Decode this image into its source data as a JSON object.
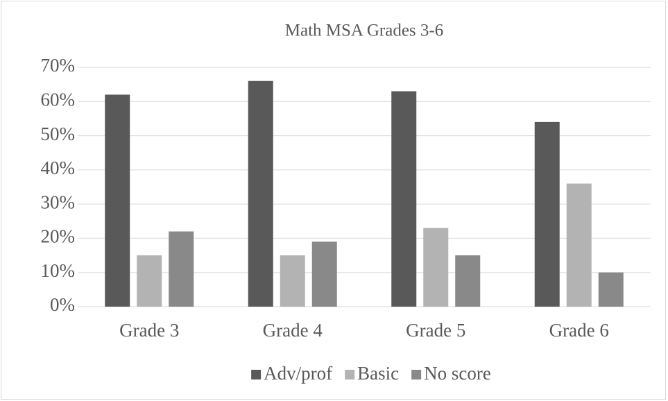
{
  "chart_data": {
    "type": "bar",
    "title": "Math MSA Grades 3-6",
    "categories": [
      "Grade 3",
      "Grade 4",
      "Grade 5",
      "Grade 6"
    ],
    "series": [
      {
        "name": "Adv/prof",
        "color": "#595959",
        "values": [
          62,
          66,
          63,
          54
        ]
      },
      {
        "name": "Basic",
        "color": "#b3b3b3",
        "values": [
          15,
          15,
          23,
          36
        ]
      },
      {
        "name": "No score",
        "color": "#898989",
        "values": [
          22,
          19,
          15,
          10
        ]
      }
    ],
    "ylim": [
      0,
      70
    ],
    "yticks": [
      {
        "value": 0,
        "label": "0%"
      },
      {
        "value": 10,
        "label": "10%"
      },
      {
        "value": 20,
        "label": "20%"
      },
      {
        "value": 30,
        "label": "30%"
      },
      {
        "value": 40,
        "label": "40%"
      },
      {
        "value": 50,
        "label": "50%"
      },
      {
        "value": 60,
        "label": "60%"
      },
      {
        "value": 70,
        "label": "70%"
      }
    ],
    "grid": true,
    "legend": "bottom"
  }
}
